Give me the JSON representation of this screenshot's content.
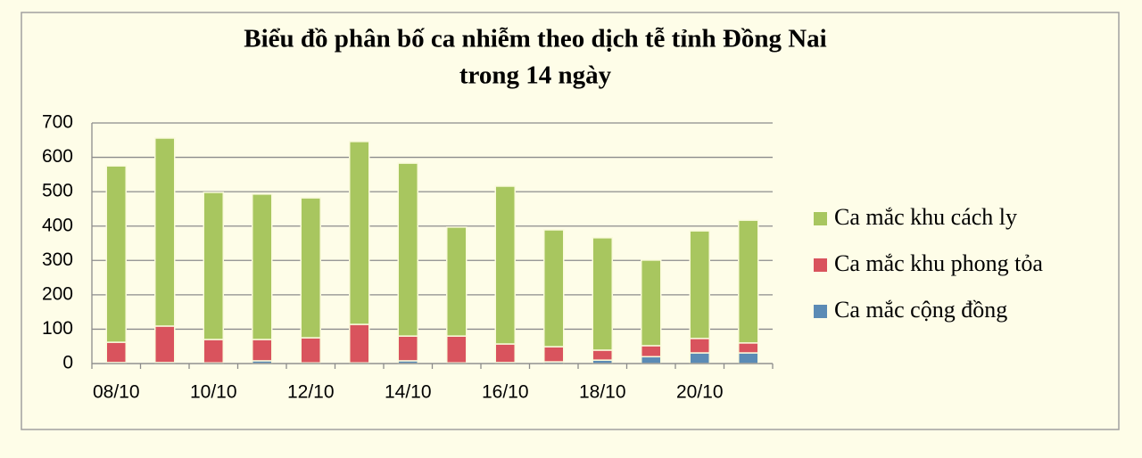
{
  "chart_data": {
    "type": "stacked_bar",
    "title": "Biểu đồ phân bố ca nhiễm theo dịch tễ tỉnh Đồng Nai",
    "subtitle": "trong 14 ngày",
    "categories": [
      "08/10",
      null,
      "10/10",
      null,
      "12/10",
      null,
      "14/10",
      null,
      "16/10",
      null,
      "18/10",
      null,
      "20/10",
      null
    ],
    "series": [
      {
        "name": "Ca mắc cộng đồng",
        "color": "#5b8bb5",
        "values": [
          3,
          3,
          2,
          8,
          2,
          2,
          8,
          2,
          3,
          5,
          10,
          20,
          31,
          31
        ]
      },
      {
        "name": "Ca mắc khu phong tỏa",
        "color": "#d9535d",
        "values": [
          59,
          106,
          68,
          62,
          73,
          112,
          72,
          78,
          54,
          44,
          29,
          32,
          42,
          29
        ]
      },
      {
        "name": "Ca mắc khu cách ly",
        "color": "#a8c65f",
        "values": [
          513,
          547,
          428,
          423,
          407,
          532,
          503,
          317,
          459,
          340,
          327,
          249,
          313,
          357
        ]
      }
    ],
    "ylim": [
      0,
      700
    ],
    "yticks": [
      0,
      100,
      200,
      300,
      400,
      500,
      600,
      700
    ],
    "grid": true,
    "legend": "right"
  }
}
